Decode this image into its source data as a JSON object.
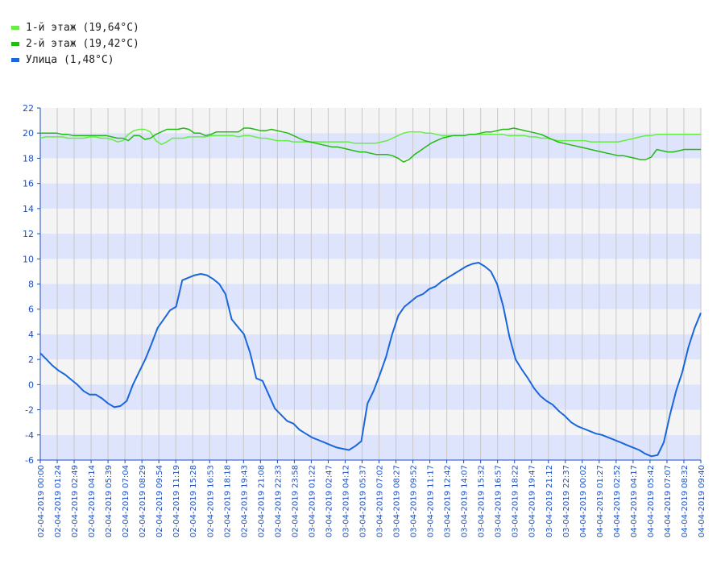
{
  "chart_data": {
    "type": "line",
    "title": "",
    "xlabel": "",
    "ylabel": "",
    "ylim": [
      -6,
      22
    ],
    "yticks": [
      -6,
      -4,
      -2,
      0,
      2,
      4,
      6,
      8,
      10,
      12,
      14,
      16,
      18,
      20,
      22
    ],
    "x_tick_labels": [
      "02-04-2019 00:00",
      "02-04-2019 01:24",
      "02-04-2019 02:49",
      "02-04-2019 04:14",
      "02-04-2019 05:39",
      "02-04-2019 07:04",
      "02-04-2019 08:29",
      "02-04-2019 09:54",
      "02-04-2019 11:19",
      "02-04-2019 15:28",
      "02-04-2019 16:53",
      "02-04-2019 18:18",
      "02-04-2019 19:43",
      "02-04-2019 21:08",
      "02-04-2019 22:33",
      "02-04-2019 23:58",
      "03-04-2019 01:22",
      "03-04-2019 02:47",
      "03-04-2019 04:12",
      "03-04-2019 05:37",
      "03-04-2019 07:02",
      "03-04-2019 08:27",
      "03-04-2019 09:52",
      "03-04-2019 11:17",
      "03-04-2019 12:42",
      "03-04-2019 14:07",
      "03-04-2019 15:32",
      "03-04-2019 16:57",
      "03-04-2019 18:22",
      "03-04-2019 19:47",
      "03-04-2019 21:12",
      "03-04-2019 22:37",
      "04-04-2019 00:02",
      "04-04-2019 01:27",
      "04-04-2019 02:52",
      "04-04-2019 04:17",
      "04-04-2019 05:42",
      "04-04-2019 07:07",
      "04-04-2019 08:32",
      "04-04-2019 09:40"
    ],
    "grid": true,
    "legend_position": "top-left",
    "series": [
      {
        "name": "1-й этаж (19,64°C)",
        "color": "#66ee44",
        "values": [
          19.6,
          19.7,
          19.7,
          19.7,
          19.7,
          19.6,
          19.6,
          19.6,
          19.6,
          19.7,
          19.7,
          19.6,
          19.6,
          19.5,
          19.3,
          19.4,
          19.9,
          20.2,
          20.3,
          20.3,
          20.1,
          19.4,
          19.1,
          19.3,
          19.6,
          19.6,
          19.6,
          19.7,
          19.7,
          19.7,
          19.7,
          19.8,
          19.8,
          19.8,
          19.8,
          19.8,
          19.7,
          19.8,
          19.8,
          19.7,
          19.6,
          19.6,
          19.5,
          19.4,
          19.4,
          19.4,
          19.3,
          19.3,
          19.3,
          19.3,
          19.3,
          19.3,
          19.3,
          19.3,
          19.3,
          19.3,
          19.3,
          19.2,
          19.2,
          19.2,
          19.2,
          19.2,
          19.3,
          19.4,
          19.6,
          19.8,
          20.0,
          20.1,
          20.1,
          20.1,
          20.0,
          20.0,
          19.9,
          19.8,
          19.8,
          19.8,
          19.8,
          19.8,
          19.9,
          19.9,
          19.9,
          19.9,
          19.9,
          19.9,
          19.9,
          19.8,
          19.8,
          19.8,
          19.8,
          19.7,
          19.7,
          19.6,
          19.6,
          19.5,
          19.4,
          19.4,
          19.4,
          19.4,
          19.4,
          19.4,
          19.3,
          19.3,
          19.3,
          19.3,
          19.3,
          19.3,
          19.4,
          19.5,
          19.6,
          19.7,
          19.8,
          19.8,
          19.9,
          19.9,
          19.9,
          19.9,
          19.9,
          19.9,
          19.9,
          19.9,
          19.9
        ]
      },
      {
        "name": "2-й этаж (19,42°C)",
        "color": "#22bb11",
        "values": [
          20.0,
          20.0,
          20.0,
          20.0,
          19.9,
          19.9,
          19.8,
          19.8,
          19.8,
          19.8,
          19.8,
          19.8,
          19.8,
          19.7,
          19.6,
          19.6,
          19.4,
          19.8,
          19.8,
          19.5,
          19.6,
          19.9,
          20.1,
          20.3,
          20.3,
          20.3,
          20.4,
          20.3,
          20.0,
          20.0,
          19.8,
          19.9,
          20.1,
          20.1,
          20.1,
          20.1,
          20.1,
          20.4,
          20.4,
          20.3,
          20.2,
          20.2,
          20.3,
          20.2,
          20.1,
          20.0,
          19.8,
          19.6,
          19.4,
          19.3,
          19.2,
          19.1,
          19.0,
          18.9,
          18.9,
          18.8,
          18.7,
          18.6,
          18.5,
          18.5,
          18.4,
          18.3,
          18.3,
          18.3,
          18.2,
          18.0,
          17.7,
          17.9,
          18.3,
          18.6,
          18.9,
          19.2,
          19.4,
          19.6,
          19.7,
          19.8,
          19.8,
          19.8,
          19.9,
          19.9,
          20.0,
          20.1,
          20.1,
          20.2,
          20.3,
          20.3,
          20.4,
          20.3,
          20.2,
          20.1,
          20.0,
          19.9,
          19.7,
          19.5,
          19.3,
          19.2,
          19.1,
          19.0,
          18.9,
          18.8,
          18.7,
          18.6,
          18.5,
          18.4,
          18.3,
          18.2,
          18.2,
          18.1,
          18.0,
          17.9,
          17.9,
          18.1,
          18.7,
          18.6,
          18.5,
          18.5,
          18.6,
          18.7,
          18.7,
          18.7,
          18.7
        ]
      },
      {
        "name": "Улица (1,48°C)",
        "color": "#1a66dd",
        "values": [
          2.5,
          2.0,
          1.5,
          1.1,
          0.8,
          0.4,
          0.0,
          -0.5,
          -0.8,
          -0.8,
          -1.1,
          -1.5,
          -1.8,
          -1.7,
          -1.3,
          0.0,
          1.0,
          2.0,
          3.2,
          4.5,
          5.2,
          5.9,
          6.2,
          8.3,
          8.5,
          8.7,
          8.8,
          8.7,
          8.4,
          8.0,
          7.2,
          5.2,
          4.6,
          4.0,
          2.5,
          0.5,
          0.3,
          -0.8,
          -1.9,
          -2.4,
          -2.9,
          -3.1,
          -3.6,
          -3.9,
          -4.2,
          -4.4,
          -4.6,
          -4.8,
          -5.0,
          -5.1,
          -5.2,
          -4.9,
          -4.5,
          -1.5,
          -0.5,
          0.8,
          2.2,
          4.0,
          5.5,
          6.2,
          6.6,
          7.0,
          7.2,
          7.6,
          7.8,
          8.2,
          8.5,
          8.8,
          9.1,
          9.4,
          9.6,
          9.7,
          9.4,
          9.0,
          8.0,
          6.2,
          3.8,
          2.0,
          1.2,
          0.5,
          -0.3,
          -0.9,
          -1.3,
          -1.6,
          -2.1,
          -2.5,
          -3.0,
          -3.3,
          -3.5,
          -3.7,
          -3.9,
          -4.0,
          -4.2,
          -4.4,
          -4.6,
          -4.8,
          -5.0,
          -5.2,
          -5.5,
          -5.7,
          -5.6,
          -4.6,
          -2.4,
          -0.5,
          1.0,
          3.0,
          4.5,
          5.7
        ]
      }
    ]
  }
}
